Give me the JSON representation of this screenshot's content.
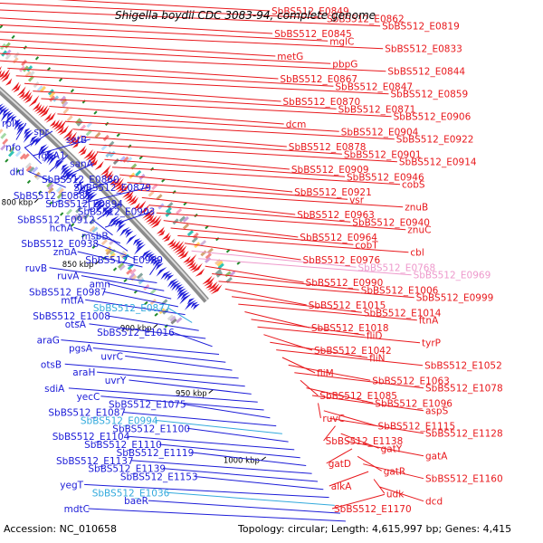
{
  "title": "Shigella boydii CDC 3083-94, complete genome",
  "footer": {
    "accession": "Accession: NC_010658",
    "stats": "Topology: circular; Length: 4,615,997 bp; Genes: 4,415"
  },
  "colors": {
    "forward": "#e8181c",
    "reverse": "#1c1cd8",
    "backbone": "#9a9a9a",
    "tick": "#1f8a2a",
    "highlight_light_blue": "#33aadd",
    "highlight_pink": "#ee99cc"
  },
  "kbp_marks": [
    "700 kbp",
    "750 kbp",
    "800 kbp",
    "850 kbp",
    "900 kbp",
    "950 kbp",
    "1000 kbp",
    "1050 kbp"
  ],
  "left_labels": [
    {
      "text": "rplY",
      "color": "#1c1cd8"
    },
    {
      "text": "spr",
      "color": "#1c1cd8"
    },
    {
      "text": "setB",
      "color": "#1c1cd8"
    },
    {
      "text": "nfo",
      "color": "#1c1cd8"
    },
    {
      "text": "fghA1",
      "color": "#1c1cd8"
    },
    {
      "text": "sanA",
      "color": "#1c1cd8"
    },
    {
      "text": "dld",
      "color": "#1c1cd8"
    },
    {
      "text": "SbBS512_E0860",
      "color": "#1c1cd8"
    },
    {
      "text": "SbBS512_E0879",
      "color": "#1c1cd8"
    },
    {
      "text": "SbBS512_E0885",
      "color": "#1c1cd8"
    },
    {
      "text": "SbBS512_E0894",
      "color": "#1c1cd8"
    },
    {
      "text": "SbBS512_E0903",
      "color": "#1c1cd8"
    },
    {
      "text": "SbBS512_E0912",
      "color": "#1c1cd8"
    },
    {
      "text": "hchA",
      "color": "#1c1cd8"
    },
    {
      "text": "msbB",
      "color": "#1c1cd8"
    },
    {
      "text": "SbBS512_E0938",
      "color": "#1c1cd8"
    },
    {
      "text": "znuA",
      "color": "#1c1cd8"
    },
    {
      "text": "SbBS512_E0989",
      "color": "#1c1cd8"
    },
    {
      "text": "ruvB",
      "color": "#1c1cd8"
    },
    {
      "text": "ruvA",
      "color": "#1c1cd8"
    },
    {
      "text": "amn",
      "color": "#1c1cd8"
    },
    {
      "text": "SbBS512_E0987",
      "color": "#1c1cd8"
    },
    {
      "text": "mtfA",
      "color": "#1c1cd8"
    },
    {
      "text": "SbBS512_E0877",
      "color": "#33aadd"
    },
    {
      "text": "SbBS512_E1008",
      "color": "#1c1cd8"
    },
    {
      "text": "otsA",
      "color": "#1c1cd8"
    },
    {
      "text": "SbBS512_E1016",
      "color": "#1c1cd8"
    },
    {
      "text": "araG",
      "color": "#1c1cd8"
    },
    {
      "text": "pgsA",
      "color": "#1c1cd8"
    },
    {
      "text": "uvrC",
      "color": "#1c1cd8"
    },
    {
      "text": "otsB",
      "color": "#1c1cd8"
    },
    {
      "text": "araH",
      "color": "#1c1cd8"
    },
    {
      "text": "uvrY",
      "color": "#1c1cd8"
    },
    {
      "text": "sdiA",
      "color": "#1c1cd8"
    },
    {
      "text": "yecC",
      "color": "#1c1cd8"
    },
    {
      "text": "SbBS512_E1075",
      "color": "#1c1cd8"
    },
    {
      "text": "SbBS512_E1087",
      "color": "#1c1cd8"
    },
    {
      "text": "SbBS512_E0994",
      "color": "#33aadd"
    },
    {
      "text": "SbBS512_E1100",
      "color": "#1c1cd8"
    },
    {
      "text": "SbBS512_E1104",
      "color": "#1c1cd8"
    },
    {
      "text": "SbBS512_E1110",
      "color": "#1c1cd8"
    },
    {
      "text": "SbBS512_E1119",
      "color": "#1c1cd8"
    },
    {
      "text": "SbBS512_E1137",
      "color": "#1c1cd8"
    },
    {
      "text": "SbBS512_E1139",
      "color": "#1c1cd8"
    },
    {
      "text": "SbBS512_E1153",
      "color": "#1c1cd8"
    },
    {
      "text": "yegT",
      "color": "#1c1cd8"
    },
    {
      "text": "SbBS512_E1036",
      "color": "#33aadd"
    },
    {
      "text": "baeR",
      "color": "#1c1cd8"
    },
    {
      "text": "mdtC",
      "color": "#1c1cd8"
    }
  ],
  "right_labels": [
    {
      "text": "SbBS512_E0849",
      "color": "#e8181c"
    },
    {
      "text": "SbBS512_E0862",
      "color": "#e8181c"
    },
    {
      "text": "SbBS512_E0819",
      "color": "#e8181c"
    },
    {
      "text": "SbBS512_E0845",
      "color": "#e8181c"
    },
    {
      "text": "mglC",
      "color": "#e8181c"
    },
    {
      "text": "SbBS512_E0833",
      "color": "#e8181c"
    },
    {
      "text": "metG",
      "color": "#e8181c"
    },
    {
      "text": "pbpG",
      "color": "#e8181c"
    },
    {
      "text": "SbBS512_E0844",
      "color": "#e8181c"
    },
    {
      "text": "SbBS512_E0867",
      "color": "#e8181c"
    },
    {
      "text": "SbBS512_E0847",
      "color": "#e8181c"
    },
    {
      "text": "SbBS512_E0859",
      "color": "#e8181c"
    },
    {
      "text": "SbBS512_E0870",
      "color": "#e8181c"
    },
    {
      "text": "SbBS512_E0871",
      "color": "#e8181c"
    },
    {
      "text": "SbBS512_E0906",
      "color": "#e8181c"
    },
    {
      "text": "dcm",
      "color": "#e8181c"
    },
    {
      "text": "SbBS512_E0904",
      "color": "#e8181c"
    },
    {
      "text": "SbBS512_E0922",
      "color": "#e8181c"
    },
    {
      "text": "SbBS512_E0878",
      "color": "#e8181c"
    },
    {
      "text": "SbBS512_E0901",
      "color": "#e8181c"
    },
    {
      "text": "SbBS512_E0914",
      "color": "#e8181c"
    },
    {
      "text": "SbBS512_E0909",
      "color": "#e8181c"
    },
    {
      "text": "SbBS512_E0946",
      "color": "#e8181c"
    },
    {
      "text": "cobS",
      "color": "#e8181c"
    },
    {
      "text": "SbBS512_E0921",
      "color": "#e8181c"
    },
    {
      "text": "vsr",
      "color": "#e8181c"
    },
    {
      "text": "znuB",
      "color": "#e8181c"
    },
    {
      "text": "SbBS512_E0963",
      "color": "#e8181c"
    },
    {
      "text": "SbBS512_E0940",
      "color": "#e8181c"
    },
    {
      "text": "znuC",
      "color": "#e8181c"
    },
    {
      "text": "SbBS512_E0964",
      "color": "#e8181c"
    },
    {
      "text": "cobT",
      "color": "#e8181c"
    },
    {
      "text": "cbl",
      "color": "#e8181c"
    },
    {
      "text": "SbBS512_E0976",
      "color": "#e8181c"
    },
    {
      "text": "SbBS512_E0768",
      "color": "#ee99cc"
    },
    {
      "text": "SbBS512_E0969",
      "color": "#ee99cc"
    },
    {
      "text": "SbBS512_E0990",
      "color": "#e8181c"
    },
    {
      "text": "SbBS512_E1006",
      "color": "#e8181c"
    },
    {
      "text": "SbBS512_E0999",
      "color": "#e8181c"
    },
    {
      "text": "SbBS512_E1015",
      "color": "#e8181c"
    },
    {
      "text": "SbBS512_E1014",
      "color": "#e8181c"
    },
    {
      "text": "ftnA",
      "color": "#e8181c"
    },
    {
      "text": "SbBS512_E1018",
      "color": "#e8181c"
    },
    {
      "text": "fliD",
      "color": "#e8181c"
    },
    {
      "text": "tyrP",
      "color": "#e8181c"
    },
    {
      "text": "SbBS512_E1042",
      "color": "#e8181c"
    },
    {
      "text": "fliN",
      "color": "#e8181c"
    },
    {
      "text": "SbBS512_E1052",
      "color": "#e8181c"
    },
    {
      "text": "fliM",
      "color": "#e8181c"
    },
    {
      "text": "SbBS512_E1063",
      "color": "#e8181c"
    },
    {
      "text": "SbBS512_E1078",
      "color": "#e8181c"
    },
    {
      "text": "SbBS512_E1085",
      "color": "#e8181c"
    },
    {
      "text": "SbBS512_E1096",
      "color": "#e8181c"
    },
    {
      "text": "aspS",
      "color": "#e8181c"
    },
    {
      "text": "ruvC",
      "color": "#e8181c"
    },
    {
      "text": "SbBS512_E1115",
      "color": "#e8181c"
    },
    {
      "text": "SbBS512_E1128",
      "color": "#e8181c"
    },
    {
      "text": "SbBS512_E1138",
      "color": "#e8181c"
    },
    {
      "text": "gatY",
      "color": "#e8181c"
    },
    {
      "text": "gatA",
      "color": "#e8181c"
    },
    {
      "text": "gatD",
      "color": "#e8181c"
    },
    {
      "text": "gatR",
      "color": "#e8181c"
    },
    {
      "text": "SbBS512_E1160",
      "color": "#e8181c"
    },
    {
      "text": "alkA",
      "color": "#e8181c"
    },
    {
      "text": "udk",
      "color": "#e8181c"
    },
    {
      "text": "dcd",
      "color": "#e8181c"
    },
    {
      "text": "SbBS512_E1170",
      "color": "#e8181c"
    }
  ]
}
